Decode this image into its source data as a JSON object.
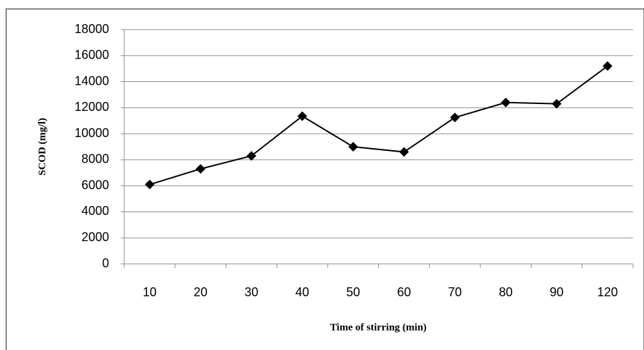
{
  "chart_data": {
    "type": "line",
    "x_label": "Time of stirring (min)",
    "y_label": "SCOD  (mg/l)",
    "categories": [
      "10",
      "20",
      "30",
      "40",
      "50",
      "60",
      "70",
      "80",
      "90",
      "120"
    ],
    "values": [
      6100,
      7300,
      8300,
      11350,
      9000,
      8600,
      11250,
      12400,
      12300,
      15200
    ],
    "color": "#000000",
    "ylim": [
      0,
      18000
    ],
    "yticks": [
      0,
      2000,
      4000,
      6000,
      8000,
      10000,
      12000,
      14000,
      16000,
      18000
    ],
    "grid": true
  }
}
